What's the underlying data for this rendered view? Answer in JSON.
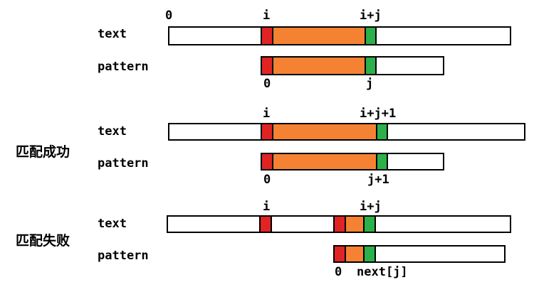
{
  "colors": {
    "mismatch": "#e02424",
    "matched": "#f58233",
    "current": "#2bb04a",
    "bar_fill": "#ffffff",
    "outline": "#000000"
  },
  "section1": {
    "row_text": "text",
    "row_pattern": "pattern",
    "idx_zero": "0",
    "idx_i": "i",
    "idx_ij": "i+j",
    "idx_p0": "0",
    "idx_j": "j"
  },
  "section2": {
    "title": "匹配成功",
    "row_text": "text",
    "row_pattern": "pattern",
    "idx_i": "i",
    "idx_ij1": "i+j+1",
    "idx_p0": "0",
    "idx_j1": "j+1"
  },
  "section3": {
    "title": "匹配失败",
    "row_text": "text",
    "row_pattern": "pattern",
    "idx_i": "i",
    "idx_ij": "i+j",
    "idx_p0": "0",
    "idx_next": "next[j]"
  }
}
